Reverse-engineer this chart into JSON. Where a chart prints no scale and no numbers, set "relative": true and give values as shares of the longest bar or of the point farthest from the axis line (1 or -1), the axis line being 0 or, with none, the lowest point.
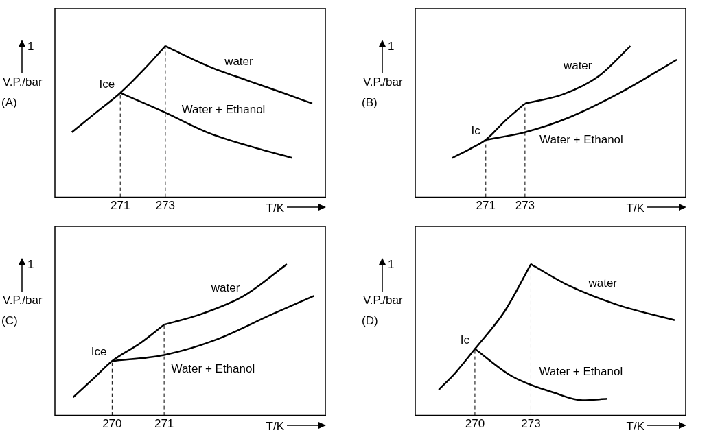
{
  "chart_data": [
    {
      "type": "line",
      "title": "(A)",
      "xlabel": "T/K",
      "ylabel": "V.P./bar",
      "relative": true,
      "xlim": [
        268.1,
        280.1
      ],
      "xticks": [
        271,
        273
      ],
      "annotations": [
        "1"
      ],
      "series": [
        {
          "name": "Ice",
          "color": "#000000",
          "x": [
            268.85,
            269.92,
            271,
            272.08,
            273
          ],
          "values": [
            0.43,
            0.56,
            0.69,
            0.85,
            1
          ]
        },
        {
          "name": "water",
          "color": "#000000",
          "x": [
            273,
            274.85,
            276.69,
            278.23,
            279.52
          ],
          "values": [
            1,
            0.87,
            0.77,
            0.69,
            0.62
          ]
        },
        {
          "name": "Water + Ethanol",
          "color": "#000000",
          "x": [
            271,
            273,
            274.85,
            276.69,
            278.63
          ],
          "values": [
            0.69,
            0.56,
            0.43,
            0.34,
            0.26
          ]
        }
      ],
      "ref_lines": [
        {
          "axis": "x",
          "value": 271,
          "line_style": "dashed"
        },
        {
          "axis": "x",
          "value": 273,
          "line_style": "dashed"
        }
      ]
    },
    {
      "type": "line",
      "title": "(B)",
      "xlabel": "T/K",
      "ylabel": "V.P./bar",
      "relative": true,
      "xlim": [
        267.4,
        281.2
      ],
      "xticks": [
        271,
        273
      ],
      "annotations": [
        "1"
      ],
      "series": [
        {
          "name": "Ic",
          "color": "#000000",
          "x": [
            269.29,
            270.2,
            271,
            272.02,
            273
          ],
          "values": [
            0.26,
            0.32,
            0.38,
            0.51,
            0.62
          ]
        },
        {
          "name": "water",
          "color": "#000000",
          "x": [
            273,
            274.93,
            276.75,
            278.38
          ],
          "values": [
            0.62,
            0.68,
            0.8,
            1
          ]
        },
        {
          "name": "Water + Ethanol",
          "color": "#000000",
          "x": [
            271,
            273,
            275.29,
            277.84,
            280.75
          ],
          "values": [
            0.38,
            0.43,
            0.53,
            0.69,
            0.91
          ]
        }
      ],
      "ref_lines": [
        {
          "axis": "x",
          "value": 271,
          "line_style": "dashed"
        },
        {
          "axis": "x",
          "value": 273,
          "line_style": "dashed"
        }
      ]
    },
    {
      "type": "line",
      "title": "(C)",
      "xlabel": "T/K",
      "ylabel": "V.P./bar",
      "relative": true,
      "xlim": [
        268.9,
        274.1
      ],
      "xticks": [
        270,
        271
      ],
      "annotations": [
        "1"
      ],
      "series": [
        {
          "name": "Ice",
          "color": "#000000",
          "x": [
            269.25,
            269.66,
            270,
            270.55,
            271
          ],
          "values": [
            0.12,
            0.25,
            0.36,
            0.48,
            0.6
          ]
        },
        {
          "name": "water",
          "color": "#000000",
          "x": [
            271,
            271.71,
            272.53,
            273.36
          ],
          "values": [
            0.6,
            0.67,
            0.79,
            1
          ]
        },
        {
          "name": "Water + Ethanol",
          "color": "#000000",
          "x": [
            270,
            271,
            271.99,
            273.08,
            273.88
          ],
          "values": [
            0.36,
            0.4,
            0.5,
            0.67,
            0.79
          ]
        }
      ],
      "ref_lines": [
        {
          "axis": "x",
          "value": 270,
          "line_style": "dashed"
        },
        {
          "axis": "x",
          "value": 271,
          "line_style": "dashed"
        }
      ]
    },
    {
      "type": "line",
      "title": "(D)",
      "xlabel": "T/K",
      "ylabel": "V.P./bar",
      "relative": true,
      "xlim": [
        266.8,
        281.3
      ],
      "xticks": [
        270,
        273
      ],
      "annotations": [
        "1"
      ],
      "series": [
        {
          "name": "Ic",
          "color": "#000000",
          "x": [
            268.06,
            268.94,
            270,
            271.6,
            273
          ],
          "values": [
            0.17,
            0.28,
            0.44,
            0.69,
            1
          ]
        },
        {
          "name": "water",
          "color": "#000000",
          "x": [
            273,
            275.01,
            277.67,
            280.71
          ],
          "values": [
            1,
            0.86,
            0.73,
            0.63
          ]
        },
        {
          "name": "Water + Ethanol",
          "color": "#000000",
          "x": [
            270,
            271.97,
            274.25,
            275.77,
            277.1
          ],
          "values": [
            0.44,
            0.26,
            0.15,
            0.1,
            0.11
          ]
        }
      ],
      "ref_lines": [
        {
          "axis": "x",
          "value": 270,
          "line_style": "dashed"
        },
        {
          "axis": "x",
          "value": 273,
          "line_style": "dashed"
        }
      ]
    }
  ]
}
